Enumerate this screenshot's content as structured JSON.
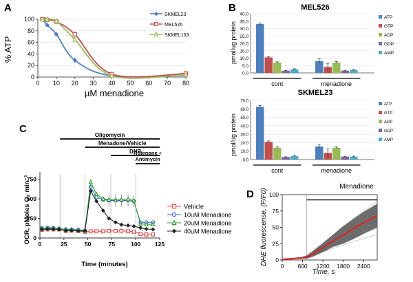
{
  "chart_data": [
    {
      "panel": "A",
      "type": "line",
      "xlabel": "µM menadione",
      "ylabel": "% ATP",
      "xlim": [
        0,
        80
      ],
      "ylim": [
        0,
        100
      ],
      "xticks": [
        "0",
        "10",
        "20",
        "30",
        "40",
        "50",
        "60",
        "70",
        "80"
      ],
      "yticks": [
        "0",
        "20",
        "40",
        "60",
        "80",
        "100"
      ],
      "x": [
        2.5,
        5,
        10,
        20,
        40,
        80
      ],
      "series": [
        {
          "name": "SKMEL23",
          "color": "#4f81bd",
          "marker": "diamond",
          "values": [
            100,
            90,
            74,
            29,
            2,
            3
          ],
          "err": [
            0,
            0,
            0,
            5,
            0,
            0
          ]
        },
        {
          "name": "MEL526",
          "color": "#c0504d",
          "marker": "square",
          "values": [
            100,
            99,
            96,
            74,
            5,
            6
          ],
          "err": [
            0,
            0,
            0,
            0,
            0,
            0
          ]
        },
        {
          "name": "SKMEL103",
          "color": "#9bbb59",
          "marker": "triangle",
          "values": [
            100,
            100,
            97,
            65,
            2,
            4
          ],
          "err": [
            0,
            0,
            0,
            0,
            0,
            0
          ]
        }
      ]
    },
    {
      "panel": "B",
      "type": "bar",
      "title": "MEL526",
      "ylabel": "pmol/ug protein",
      "ylim": [
        0,
        40
      ],
      "yticks": [
        "0.0",
        "5.0",
        "10.0",
        "15.0",
        "20.0",
        "25.0",
        "30.0",
        "35.0",
        "40.0"
      ],
      "groups": [
        "cont",
        "menadione"
      ],
      "series": [
        {
          "name": "ATP",
          "color": "#4f81bd",
          "values": [
            33.0,
            8.0
          ],
          "err": [
            0.8,
            1.5
          ]
        },
        {
          "name": "GTP",
          "color": "#c0504d",
          "values": [
            10.5,
            4.0
          ],
          "err": [
            0.5,
            2.5
          ]
        },
        {
          "name": "ADP",
          "color": "#9bbb59",
          "values": [
            7.0,
            7.0
          ],
          "err": [
            0.5,
            0.6
          ]
        },
        {
          "name": "GDP",
          "color": "#8064a2",
          "values": [
            1.5,
            1.5
          ],
          "err": [
            0.2,
            0.3
          ]
        },
        {
          "name": "AMP",
          "color": "#4bacc6",
          "values": [
            2.5,
            2.0
          ],
          "err": [
            0.3,
            0.4
          ]
        }
      ]
    },
    {
      "panel": "B",
      "type": "bar",
      "title": "SKMEL23",
      "ylabel": "pmol/ug protein",
      "ylim": [
        0,
        70
      ],
      "yticks": [
        "0.0",
        "10.0",
        "20.0",
        "30.0",
        "40.0",
        "50.0",
        "60.0",
        "70.0"
      ],
      "groups": [
        "cont",
        "menadione"
      ],
      "series": [
        {
          "name": "ATP",
          "color": "#4f81bd",
          "values": [
            62.5,
            15.5
          ],
          "err": [
            1.5,
            2.5
          ]
        },
        {
          "name": "GTP",
          "color": "#c0504d",
          "values": [
            21.0,
            8.0
          ],
          "err": [
            1.0,
            4.5
          ]
        },
        {
          "name": "ADP",
          "color": "#9bbb59",
          "values": [
            14.0,
            14.0
          ],
          "err": [
            1.0,
            1.2
          ]
        },
        {
          "name": "GDP",
          "color": "#8064a2",
          "values": [
            3.0,
            3.5
          ],
          "err": [
            0.3,
            0.5
          ]
        },
        {
          "name": "AMP",
          "color": "#4bacc6",
          "values": [
            4.0,
            3.5
          ],
          "err": [
            0.4,
            0.5
          ]
        }
      ]
    },
    {
      "panel": "C",
      "type": "line",
      "xlabel": "Time (minutes)",
      "ylabel": "OCR, pMoles O₂ min⁻¹",
      "xlim": [
        0,
        125
      ],
      "ylim": [
        0,
        800
      ],
      "xticks": [
        "0",
        "25",
        "50",
        "75",
        "100",
        "125"
      ],
      "yticks": [
        "0",
        "250",
        "500",
        "750"
      ],
      "injections": [
        {
          "label": "Oligomycin",
          "start": 21,
          "end": 125
        },
        {
          "label": "Menadone/Vehicle",
          "start": 47,
          "end": 125
        },
        {
          "label": "DNP",
          "start": 74,
          "end": 125
        },
        {
          "label": "Rotenone + Antimycin",
          "start": 100,
          "end": 125
        }
      ],
      "injection_times": [
        21,
        47,
        74,
        100
      ],
      "x": [
        2,
        8,
        14,
        20,
        27,
        33,
        40,
        47,
        53,
        59,
        66,
        72,
        79,
        85,
        92,
        98,
        105,
        111,
        118
      ],
      "series": [
        {
          "name": "Vehicle",
          "color": "#d9534f",
          "marker": "square",
          "values": [
            105,
            110,
            110,
            110,
            90,
            95,
            90,
            80,
            85,
            85,
            85,
            90,
            90,
            90,
            85,
            80,
            50,
            45,
            45
          ]
        },
        {
          "name": "10uM Menadione",
          "color": "#3b5bdb",
          "marker": "circle",
          "values": [
            125,
            130,
            128,
            120,
            110,
            110,
            105,
            95,
            650,
            520,
            490,
            480,
            480,
            480,
            480,
            470,
            200,
            200,
            200
          ]
        },
        {
          "name": "20uM Menadione",
          "color": "#2e9e2e",
          "marker": "triangle",
          "values": [
            120,
            125,
            122,
            118,
            105,
            105,
            100,
            95,
            715,
            560,
            500,
            490,
            485,
            490,
            495,
            480,
            180,
            175,
            175
          ]
        },
        {
          "name": "40uM Menadione",
          "color": "#222222",
          "marker": "diamond",
          "values": [
            110,
            115,
            112,
            108,
            95,
            95,
            90,
            90,
            600,
            470,
            350,
            250,
            200,
            170,
            160,
            150,
            130,
            115,
            110
          ]
        }
      ]
    },
    {
      "panel": "D",
      "type": "line",
      "xlabel": "Time, s",
      "ylabel": "DHE fluorescense, (F/F0)",
      "xlim": [
        0,
        2800
      ],
      "ylim": [
        0,
        100
      ],
      "xticks": [
        "0",
        "600",
        "1200",
        "1800",
        "2400"
      ],
      "yticks": [
        "0",
        "25",
        "50",
        "75",
        "100"
      ],
      "treatment_label": "Menadione",
      "treatment_start": 720,
      "mean": {
        "x": [
          0,
          300,
          600,
          720,
          900,
          1200,
          1500,
          1800,
          2100,
          2400,
          2800
        ],
        "y": [
          1,
          2,
          3,
          4,
          9,
          19,
          29,
          38,
          48,
          57,
          68
        ]
      },
      "sd_upper": [
        2,
        3,
        5,
        7,
        14,
        26,
        39,
        52,
        63,
        74,
        86
      ],
      "sd_lower": [
        0,
        1,
        2,
        2,
        5,
        12,
        20,
        25,
        32,
        40,
        50
      ]
    }
  ],
  "labels": {
    "A": "A",
    "B": "B",
    "C": "C",
    "D": "D"
  }
}
